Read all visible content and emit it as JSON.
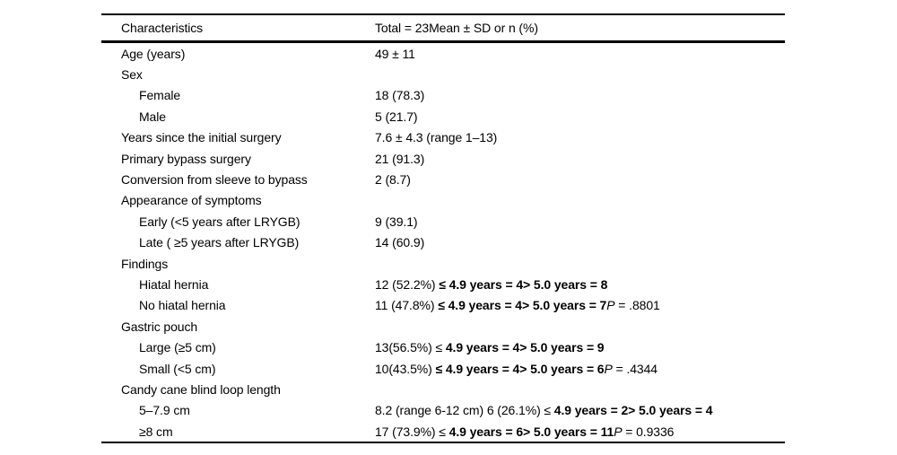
{
  "table": {
    "header": {
      "col1": "Characteristics",
      "col2": "Total = 23Mean ± SD or n (%)"
    },
    "rows": [
      {
        "label": "Age (years)",
        "indent": 0,
        "value": [
          {
            "t": "49 ± 11"
          }
        ]
      },
      {
        "label": "Sex",
        "indent": 0,
        "value": []
      },
      {
        "label": "Female",
        "indent": 1,
        "value": [
          {
            "t": "18 (78.3)"
          }
        ]
      },
      {
        "label": "Male",
        "indent": 1,
        "value": [
          {
            "t": "5 (21.7)"
          }
        ]
      },
      {
        "label": "Years since the initial surgery",
        "indent": 0,
        "value": [
          {
            "t": "7.6 ± 4.3 (range 1–13)"
          }
        ]
      },
      {
        "label": "Primary bypass surgery",
        "indent": 0,
        "value": [
          {
            "t": "21 (91.3)"
          }
        ]
      },
      {
        "label": "Conversion from sleeve to bypass",
        "indent": 0,
        "value": [
          {
            "t": "2 (8.7)"
          }
        ]
      },
      {
        "label": "Appearance of symptoms",
        "indent": 0,
        "value": []
      },
      {
        "label": "Early (<5 years after LRYGB)",
        "indent": 1,
        "value": [
          {
            "t": "9 (39.1)"
          }
        ]
      },
      {
        "label": "Late ( ≥5 years after LRYGB)",
        "indent": 1,
        "value": [
          {
            "t": "14 (60.9)"
          }
        ]
      },
      {
        "label": "Findings",
        "indent": 0,
        "value": []
      },
      {
        "label": "Hiatal hernia",
        "indent": 1,
        "value": [
          {
            "t": "12 (52.2%) "
          },
          {
            "t": "≤ 4.9 years = 4> 5.0 years = 8",
            "b": true
          }
        ]
      },
      {
        "label": "No hiatal hernia",
        "indent": 1,
        "value": [
          {
            "t": "11 (47.8%) "
          },
          {
            "t": "≤ 4.9 years = 4> 5.0 years = 7",
            "b": true
          },
          {
            "t": "P",
            "i": true
          },
          {
            "t": " = .8801"
          }
        ]
      },
      {
        "label": "Gastric pouch",
        "indent": 0,
        "value": []
      },
      {
        "label": "Large (≥5 cm)",
        "indent": 1,
        "value": [
          {
            "t": "13(56.5%) ≤ "
          },
          {
            "t": "4.9 years = 4> 5.0 years = 9",
            "b": true
          }
        ]
      },
      {
        "label": "Small (<5 cm)",
        "indent": 1,
        "value": [
          {
            "t": "10(43.5%) "
          },
          {
            "t": "≤ 4.9 years = 4> 5.0 years = 6",
            "b": true
          },
          {
            "t": "P",
            "i": true
          },
          {
            "t": " = .4344"
          }
        ]
      },
      {
        "label": "Candy cane blind loop length",
        "indent": 0,
        "value": []
      },
      {
        "label": "5–7.9 cm",
        "indent": 1,
        "value": [
          {
            "t": "8.2 (range 6-12 cm) 6 (26.1%) ≤ "
          },
          {
            "t": "4.9 years = 2> 5.0 years = 4",
            "b": true
          }
        ]
      },
      {
        "label": "≥8 cm",
        "indent": 1,
        "value": [
          {
            "t": "17 (73.9%) ≤ "
          },
          {
            "t": "4.9 years = 6> 5.0 years = 11",
            "b": true
          },
          {
            "t": "P",
            "i": true
          },
          {
            "t": " = 0.9336"
          }
        ]
      }
    ]
  }
}
